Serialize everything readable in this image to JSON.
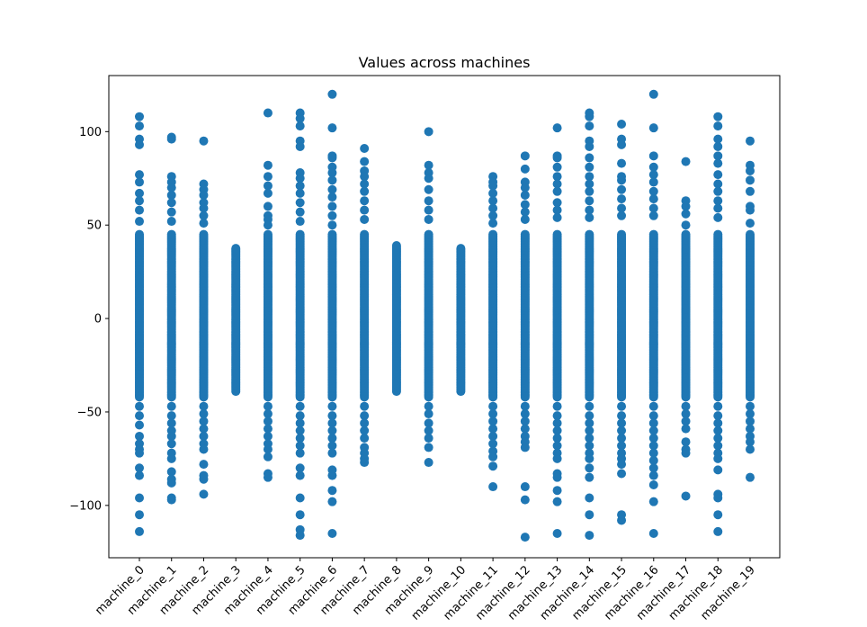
{
  "chart_data": {
    "type": "scatter",
    "title": "Values across machines",
    "xlabel": "",
    "ylabel": "",
    "categories": [
      "machine_0",
      "machine_1",
      "machine_2",
      "machine_3",
      "machine_4",
      "machine_5",
      "machine_6",
      "machine_7",
      "machine_8",
      "machine_9",
      "machine_10",
      "machine_11",
      "machine_12",
      "machine_13",
      "machine_14",
      "machine_15",
      "machine_16",
      "machine_17",
      "machine_18",
      "machine_19"
    ],
    "ylim": [
      -128,
      130
    ],
    "yticks": [
      -100,
      -50,
      0,
      50,
      100
    ],
    "color": "#1f77b4",
    "grid": false,
    "series": [
      {
        "category": "machine_0",
        "dense_range": [
          -42,
          45
        ],
        "outliers": [
          108,
          103,
          96,
          93,
          77,
          73,
          67,
          63,
          58,
          52,
          -47,
          -52,
          -57,
          -63,
          -67,
          -70,
          -72,
          -80,
          -84,
          -96,
          -105,
          -114
        ]
      },
      {
        "category": "machine_1",
        "dense_range": [
          -42,
          45
        ],
        "outliers": [
          97,
          96,
          76,
          73,
          70,
          66,
          62,
          57,
          52,
          -47,
          -52,
          -56,
          -60,
          -63,
          -67,
          -72,
          -75,
          -82,
          -86,
          -88,
          -96,
          -97
        ]
      },
      {
        "category": "machine_2",
        "dense_range": [
          -42,
          45
        ],
        "outliers": [
          95,
          72,
          69,
          66,
          62,
          59,
          55,
          51,
          -47,
          -51,
          -55,
          -59,
          -63,
          -67,
          -70,
          -78,
          -84,
          -86,
          -94
        ]
      },
      {
        "category": "machine_3",
        "dense_range": [
          -39,
          38
        ],
        "outliers": []
      },
      {
        "category": "machine_4",
        "dense_range": [
          -42,
          45
        ],
        "outliers": [
          110,
          82,
          76,
          71,
          67,
          60,
          55,
          53,
          50,
          -47,
          -51,
          -55,
          -59,
          -63,
          -67,
          -70,
          -74,
          -83,
          -85
        ]
      },
      {
        "category": "machine_5",
        "dense_range": [
          -42,
          45
        ],
        "outliers": [
          110,
          107,
          103,
          95,
          92,
          78,
          75,
          71,
          67,
          62,
          57,
          52,
          -47,
          -52,
          -56,
          -60,
          -64,
          -68,
          -72,
          -80,
          -84,
          -96,
          -105,
          -113,
          -116
        ]
      },
      {
        "category": "machine_6",
        "dense_range": [
          -42,
          45
        ],
        "outliers": [
          120,
          102,
          87,
          86,
          81,
          78,
          74,
          69,
          65,
          60,
          55,
          50,
          -47,
          -52,
          -56,
          -60,
          -64,
          -68,
          -72,
          -81,
          -84,
          -92,
          -98,
          -115
        ]
      },
      {
        "category": "machine_7",
        "dense_range": [
          -42,
          45
        ],
        "outliers": [
          91,
          84,
          79,
          76,
          72,
          68,
          63,
          58,
          53,
          -47,
          -52,
          -56,
          -60,
          -64,
          -69,
          -72,
          -75,
          -77
        ]
      },
      {
        "category": "machine_8",
        "dense_range": [
          -39,
          39
        ],
        "outliers": []
      },
      {
        "category": "machine_9",
        "dense_range": [
          -42,
          45
        ],
        "outliers": [
          100,
          82,
          78,
          75,
          69,
          63,
          58,
          53,
          -47,
          -51,
          -56,
          -60,
          -64,
          -69,
          -77
        ]
      },
      {
        "category": "machine_10",
        "dense_range": [
          -39,
          38
        ],
        "outliers": []
      },
      {
        "category": "machine_11",
        "dense_range": [
          -42,
          45
        ],
        "outliers": [
          76,
          73,
          71,
          67,
          63,
          59,
          55,
          51,
          -47,
          -51,
          -55,
          -59,
          -63,
          -67,
          -71,
          -74,
          -79,
          -90
        ]
      },
      {
        "category": "machine_12",
        "dense_range": [
          -42,
          45
        ],
        "outliers": [
          87,
          80,
          73,
          70,
          66,
          61,
          57,
          53,
          -47,
          -51,
          -55,
          -59,
          -63,
          -66,
          -69,
          -90,
          -97,
          -117
        ]
      },
      {
        "category": "machine_13",
        "dense_range": [
          -42,
          45
        ],
        "outliers": [
          102,
          87,
          86,
          81,
          76,
          72,
          68,
          62,
          58,
          54,
          -47,
          -52,
          -56,
          -60,
          -64,
          -68,
          -72,
          -75,
          -83,
          -85,
          -92,
          -98,
          -115
        ]
      },
      {
        "category": "machine_14",
        "dense_range": [
          -42,
          45
        ],
        "outliers": [
          110,
          108,
          103,
          95,
          92,
          86,
          81,
          76,
          72,
          68,
          63,
          58,
          54,
          -47,
          -52,
          -56,
          -60,
          -64,
          -68,
          -72,
          -75,
          -80,
          -85,
          -96,
          -105,
          -116
        ]
      },
      {
        "category": "machine_15",
        "dense_range": [
          -42,
          45
        ],
        "outliers": [
          104,
          96,
          93,
          83,
          76,
          74,
          69,
          64,
          59,
          55,
          -47,
          -52,
          -56,
          -60,
          -64,
          -68,
          -72,
          -75,
          -78,
          -83,
          -105,
          -108
        ]
      },
      {
        "category": "machine_16",
        "dense_range": [
          -42,
          45
        ],
        "outliers": [
          120,
          102,
          87,
          81,
          77,
          73,
          68,
          64,
          59,
          55,
          -47,
          -52,
          -56,
          -60,
          -64,
          -68,
          -72,
          -76,
          -80,
          -84,
          -89,
          -98,
          -115
        ]
      },
      {
        "category": "machine_17",
        "dense_range": [
          -42,
          45
        ],
        "outliers": [
          84,
          63,
          60,
          56,
          50,
          -47,
          -51,
          -55,
          -59,
          -66,
          -70,
          -72,
          -95
        ]
      },
      {
        "category": "machine_18",
        "dense_range": [
          -42,
          45
        ],
        "outliers": [
          108,
          103,
          96,
          92,
          87,
          83,
          77,
          72,
          68,
          63,
          59,
          54,
          -47,
          -52,
          -56,
          -60,
          -64,
          -68,
          -72,
          -75,
          -81,
          -94,
          -96,
          -105,
          -114
        ]
      },
      {
        "category": "machine_19",
        "dense_range": [
          -42,
          45
        ],
        "outliers": [
          95,
          82,
          79,
          74,
          68,
          60,
          58,
          51,
          -47,
          -51,
          -55,
          -59,
          -63,
          -66,
          -70,
          -85
        ]
      }
    ]
  }
}
